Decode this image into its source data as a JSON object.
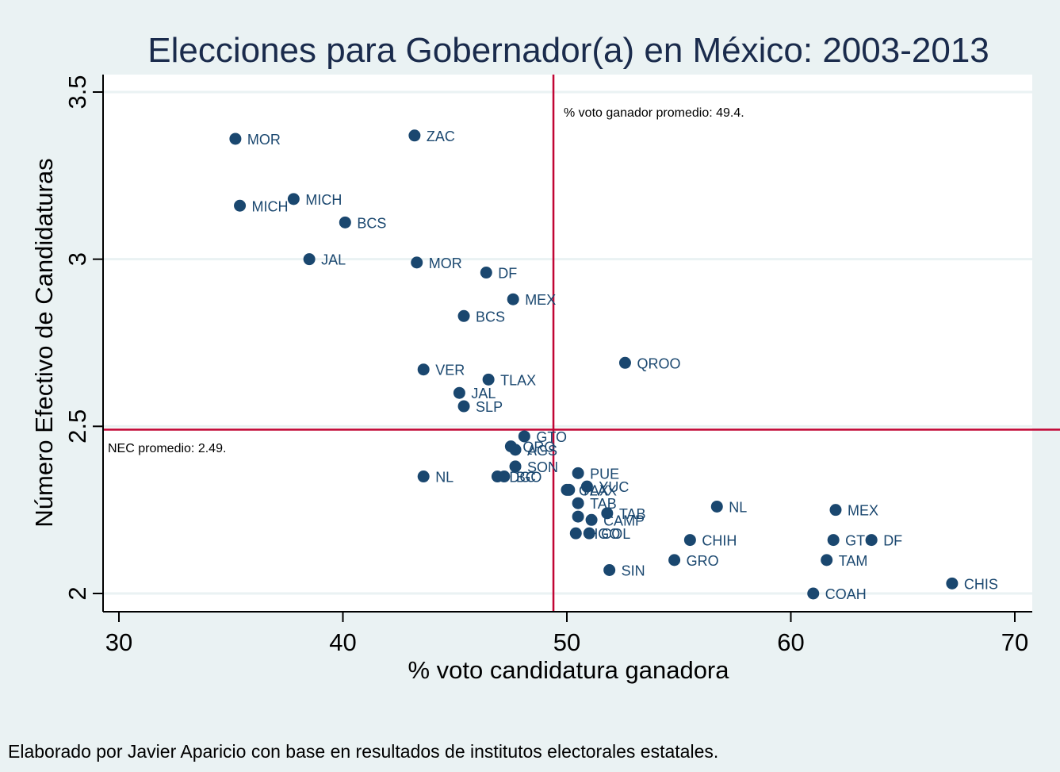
{
  "chart_data": {
    "type": "scatter",
    "title": "Elecciones para Gobernador(a) en México: 2003-2013",
    "xlabel": "% voto candidatura ganadora",
    "ylabel": "Número Efectivo de Candidaturas",
    "xlim": [
      29.3,
      70.8
    ],
    "ylim": [
      1.95,
      3.55
    ],
    "xticks": [
      30,
      40,
      50,
      60,
      70
    ],
    "xtick_labels": [
      "30",
      "40",
      "50",
      "60",
      "70"
    ],
    "yticks": [
      2,
      2.5,
      3,
      3.5
    ],
    "ytick_labels": [
      "2",
      "2.5",
      "3",
      "3.5"
    ],
    "grid": "horizontal",
    "reference_lines": {
      "x": {
        "value": 49.4,
        "label": "% voto ganador promedio: 49.4."
      },
      "y": {
        "value": 2.49,
        "label": "NEC promedio: 2.49."
      }
    },
    "colors": {
      "marker": "#1a476f",
      "reference_line": "#c10534",
      "plot_bg": "#ffffff",
      "page_bg": "#eaf2f3",
      "grid": "#eaf2f3",
      "title": "#1a2b4c"
    },
    "points": [
      {
        "label": "MOR",
        "x": 35.2,
        "y": 3.36
      },
      {
        "label": "ZAC",
        "x": 43.2,
        "y": 3.37
      },
      {
        "label": "MICH",
        "x": 35.4,
        "y": 3.16
      },
      {
        "label": "MICH",
        "x": 37.8,
        "y": 3.18
      },
      {
        "label": "BCS",
        "x": 40.1,
        "y": 3.11
      },
      {
        "label": "JAL",
        "x": 38.5,
        "y": 3.0
      },
      {
        "label": "MOR",
        "x": 43.3,
        "y": 2.99
      },
      {
        "label": "DF",
        "x": 46.4,
        "y": 2.96
      },
      {
        "label": "MEX",
        "x": 47.6,
        "y": 2.88
      },
      {
        "label": "BCS",
        "x": 45.4,
        "y": 2.83
      },
      {
        "label": "QROO",
        "x": 52.6,
        "y": 2.69
      },
      {
        "label": "VER",
        "x": 43.6,
        "y": 2.67
      },
      {
        "label": "TLAX",
        "x": 46.5,
        "y": 2.64
      },
      {
        "label": "JAL",
        "x": 45.2,
        "y": 2.6
      },
      {
        "label": "SLP",
        "x": 45.4,
        "y": 2.56
      },
      {
        "label": "GTO",
        "x": 48.1,
        "y": 2.47
      },
      {
        "label": "QRO",
        "x": 47.5,
        "y": 2.44
      },
      {
        "label": "AGS",
        "x": 47.7,
        "y": 2.43
      },
      {
        "label": "SON",
        "x": 47.7,
        "y": 2.38
      },
      {
        "label": "DGO",
        "x": 46.9,
        "y": 2.35
      },
      {
        "label": "BC",
        "x": 47.2,
        "y": 2.35
      },
      {
        "label": "NL",
        "x": 43.6,
        "y": 2.35
      },
      {
        "label": "PUE",
        "x": 50.5,
        "y": 2.36
      },
      {
        "label": "YUC",
        "x": 50.9,
        "y": 2.32
      },
      {
        "label": "OAX",
        "x": 50.0,
        "y": 2.31
      },
      {
        "label": "TLAX",
        "x": 50.1,
        "y": 2.31
      },
      {
        "label": "TAB",
        "x": 50.5,
        "y": 2.27
      },
      {
        "label": "TAB",
        "x": 51.8,
        "y": 2.24
      },
      {
        "label": "CAMP",
        "x": 51.1,
        "y": 2.22
      },
      {
        "label": "",
        "x": 50.5,
        "y": 2.23
      },
      {
        "label": "HGO",
        "x": 50.4,
        "y": 2.18
      },
      {
        "label": "COL",
        "x": 51.0,
        "y": 2.18
      },
      {
        "label": "NL",
        "x": 56.7,
        "y": 2.26
      },
      {
        "label": "MEX",
        "x": 62.0,
        "y": 2.25
      },
      {
        "label": "CHIH",
        "x": 55.5,
        "y": 2.16
      },
      {
        "label": "GTO",
        "x": 61.9,
        "y": 2.16
      },
      {
        "label": "DF",
        "x": 63.6,
        "y": 2.16
      },
      {
        "label": "GRO",
        "x": 54.8,
        "y": 2.1
      },
      {
        "label": "TAM",
        "x": 61.6,
        "y": 2.1
      },
      {
        "label": "SIN",
        "x": 51.9,
        "y": 2.07
      },
      {
        "label": "COAH",
        "x": 61.0,
        "y": 2.0
      },
      {
        "label": "CHIS",
        "x": 67.2,
        "y": 2.03
      }
    ]
  },
  "note": "Elaborado por Javier Aparicio con base en resultados de institutos electorales estatales."
}
